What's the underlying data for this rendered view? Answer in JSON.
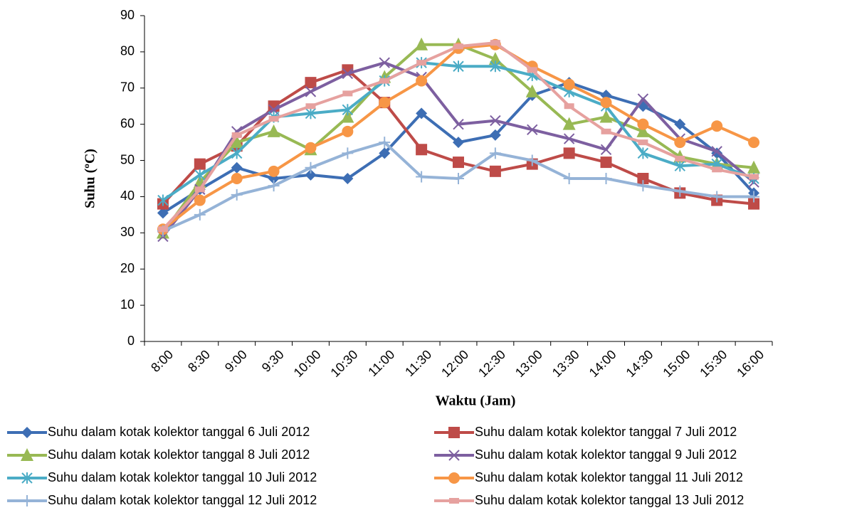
{
  "chart_data": {
    "type": "line",
    "x_label": "Waktu (Jam)",
    "y_label": "Suhu (ºC)",
    "categories": [
      "8:00",
      "8:30",
      "9:00",
      "9:30",
      "10:00",
      "10:30",
      "11:00",
      "11:30",
      "12:00",
      "12:30",
      "13:00",
      "13:30",
      "14:00",
      "14:30",
      "15:00",
      "15:30",
      "16:00"
    ],
    "ylim": [
      0,
      90
    ],
    "yticks": [
      0,
      10,
      20,
      30,
      40,
      50,
      60,
      70,
      80,
      90
    ],
    "grid": false,
    "series": [
      {
        "name": "Suhu dalam kotak kolektor tanggal 6 Juli 2012",
        "color": "#3d6eb4",
        "marker": "diamond",
        "values": [
          35.5,
          42,
          48,
          45,
          46,
          45,
          52,
          63,
          55,
          57,
          68,
          71.5,
          68,
          65,
          60,
          52,
          41
        ]
      },
      {
        "name": "Suhu dalam kotak kolektor tanggal 7 Juli 2012",
        "color": "#be4b48",
        "marker": "square",
        "values": [
          38,
          49,
          54,
          65,
          71.5,
          75,
          66,
          53,
          49.5,
          47,
          49,
          52,
          49.5,
          45,
          41,
          39,
          38
        ]
      },
      {
        "name": "Suhu dalam kotak kolektor tanggal 8 Juli 2012",
        "color": "#98b954",
        "marker": "triangle",
        "values": [
          30,
          44,
          55,
          58,
          53,
          62,
          73,
          82,
          82,
          78,
          69,
          60,
          62,
          58,
          51,
          49,
          48
        ]
      },
      {
        "name": "Suhu dalam kotak kolektor tanggal 9 Juli 2012",
        "color": "#7d5fa0",
        "marker": "x",
        "values": [
          29,
          42,
          58,
          64,
          69,
          74,
          77,
          73,
          60,
          61,
          58.5,
          56,
          53,
          67,
          56,
          52.5,
          44
        ]
      },
      {
        "name": "Suhu dalam kotak kolektor tanggal 10 Juli 2012",
        "color": "#4bacc6",
        "marker": "star",
        "values": [
          39,
          46,
          52,
          62,
          63,
          64,
          72,
          77,
          76,
          76,
          73.5,
          69,
          65,
          52,
          48.5,
          49,
          45
        ]
      },
      {
        "name": "Suhu dalam kotak kolektor tanggal 11 Juli 2012",
        "color": "#f79646",
        "marker": "circle",
        "values": [
          31,
          39,
          45,
          47,
          53.5,
          58,
          66,
          72,
          81,
          82,
          76,
          71,
          66,
          60,
          55,
          59.5,
          55
        ]
      },
      {
        "name": "Suhu dalam kotak kolektor tanggal 12 Juli 2012",
        "color": "#95b3d7",
        "marker": "plus",
        "values": [
          30.5,
          35,
          40.5,
          43,
          48,
          52,
          55,
          45.5,
          45,
          52,
          50,
          45,
          45,
          43,
          41.5,
          40,
          40
        ]
      },
      {
        "name": "Suhu dalam kotak kolektor tanggal 13 Juli 2012",
        "color": "#e6a19f",
        "marker": "dash",
        "values": [
          31,
          42,
          57,
          61.5,
          65,
          68.5,
          72,
          77,
          81.5,
          82.5,
          75,
          65,
          58,
          55,
          50.5,
          47.5,
          45.5
        ]
      }
    ]
  }
}
